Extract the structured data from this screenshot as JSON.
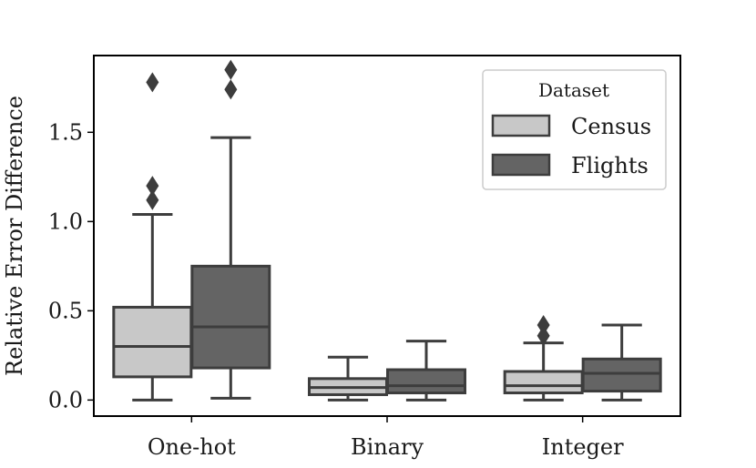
{
  "chart_data": {
    "type": "box",
    "categories": [
      "One-hot",
      "Binary",
      "Integer"
    ],
    "ylabel": "Relative Error Difference",
    "xlabel": "",
    "ylim": [
      -0.09,
      1.93
    ],
    "yticks": [
      0.0,
      0.5,
      1.0,
      1.5
    ],
    "ytick_labels": [
      "0.0",
      "0.5",
      "1.0",
      "1.5"
    ],
    "legend": {
      "title": "Dataset",
      "placement": "top-right"
    },
    "grid": false,
    "series": [
      {
        "name": "Census",
        "color": "#c8c8c8",
        "boxes": [
          {
            "whisker_low": 0.0,
            "q1": 0.13,
            "median": 0.3,
            "q3": 0.52,
            "whisker_high": 1.04,
            "outliers": [
              1.12,
              1.2,
              1.78
            ]
          },
          {
            "whisker_low": 0.0,
            "q1": 0.03,
            "median": 0.07,
            "q3": 0.12,
            "whisker_high": 0.24,
            "outliers": []
          },
          {
            "whisker_low": 0.0,
            "q1": 0.04,
            "median": 0.08,
            "q3": 0.16,
            "whisker_high": 0.32,
            "outliers": [
              0.36,
              0.42
            ]
          }
        ]
      },
      {
        "name": "Flights",
        "color": "#646464",
        "boxes": [
          {
            "whisker_low": 0.01,
            "q1": 0.18,
            "median": 0.41,
            "q3": 0.75,
            "whisker_high": 1.47,
            "outliers": [
              1.74,
              1.85
            ]
          },
          {
            "whisker_low": 0.0,
            "q1": 0.04,
            "median": 0.08,
            "q3": 0.17,
            "whisker_high": 0.33,
            "outliers": []
          },
          {
            "whisker_low": 0.0,
            "q1": 0.05,
            "median": 0.15,
            "q3": 0.23,
            "whisker_high": 0.42,
            "outliers": []
          }
        ]
      }
    ]
  },
  "colors": {
    "line": "#3d3d3d",
    "census": "#c8c8c8",
    "flights": "#646464"
  }
}
